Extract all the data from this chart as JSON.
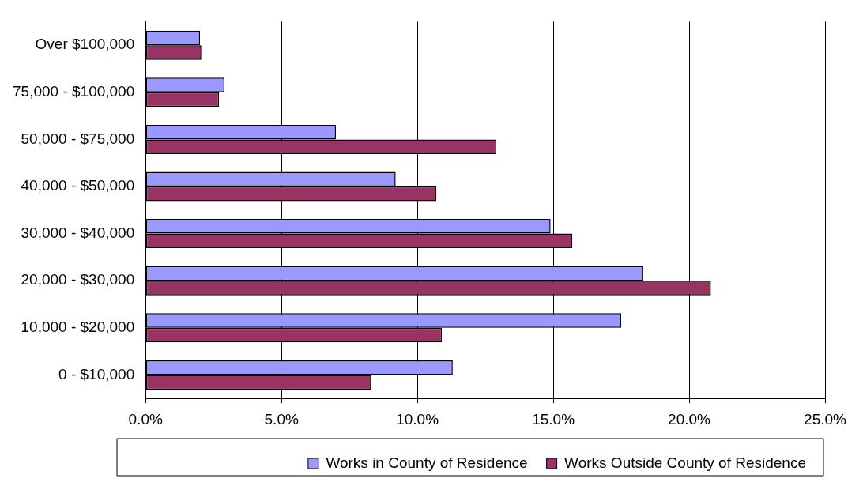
{
  "chart_data": {
    "type": "bar",
    "orientation": "horizontal",
    "categories": [
      "Over $100,000",
      "75,000 - $100,000",
      "50,000 - $75,000",
      "40,000 - $50,000",
      "30,000 - $40,000",
      "20,000 - $30,000",
      "10,000 - $20,000",
      "0 - $10,000"
    ],
    "series": [
      {
        "name": "Works in County of Residence",
        "color": "#9999ff",
        "values": [
          2.0,
          2.9,
          7.0,
          9.2,
          14.9,
          18.3,
          17.5,
          11.3
        ]
      },
      {
        "name": "Works Outside County of Residence",
        "color": "#993366",
        "values": [
          2.05,
          2.7,
          12.9,
          10.7,
          15.7,
          20.8,
          10.9,
          8.3
        ]
      }
    ],
    "xlim": [
      0,
      25
    ],
    "xticks": [
      {
        "value": 0,
        "label": "0.0%"
      },
      {
        "value": 5,
        "label": "5.0%"
      },
      {
        "value": 10,
        "label": "10.0%"
      },
      {
        "value": 15,
        "label": "15.0%"
      },
      {
        "value": 20,
        "label": "20.0%"
      },
      {
        "value": 25,
        "label": "25.0%"
      }
    ],
    "grid": "x",
    "legend": "bottom"
  }
}
